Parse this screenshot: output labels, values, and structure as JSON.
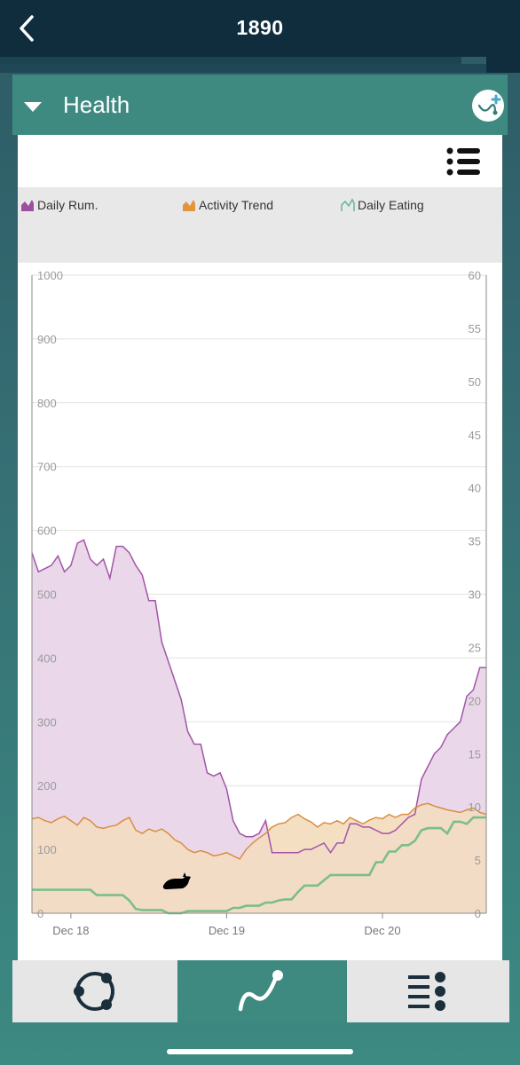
{
  "header": {
    "title": "1890",
    "back_icon": "chevron-left-icon"
  },
  "panel": {
    "title": "Health",
    "toggle_icon": "caret-down-icon",
    "add_icon": "add-trend-icon"
  },
  "chart_menu_icon": "list-icon",
  "legend": [
    {
      "label": "Daily Rum.",
      "color": "#9c4f9c",
      "icon": "area-series-icon"
    },
    {
      "label": "Activity Trend",
      "color": "#e0963c",
      "icon": "area-series-icon"
    },
    {
      "label": "Daily Eating",
      "color": "#6fb7a3",
      "icon": "line-series-icon"
    }
  ],
  "colors": {
    "rumination_fill": "#ead8ea",
    "rumination_line": "#a255a6",
    "activity_fill": "#f3dcc2",
    "activity_line": "#d98e43",
    "eating_line": "#7bbf86",
    "overlap_fill": "#fdf5cf",
    "accent": "#3f8a80",
    "topbar": "#0f2d3d"
  },
  "chart_data": {
    "type": "area",
    "x_tick_labels": [
      "Dec 18",
      "Dec 19",
      "Dec 20"
    ],
    "x_tick_positions": [
      6,
      30,
      54
    ],
    "x_range": [
      0,
      70
    ],
    "y_left": {
      "range": [
        0,
        1000
      ],
      "ticks": [
        0,
        100,
        200,
        300,
        400,
        500,
        600,
        700,
        800,
        900,
        1000
      ]
    },
    "y_right": {
      "range": [
        0,
        60
      ],
      "ticks": [
        0,
        5,
        10,
        15,
        20,
        25,
        30,
        35,
        40,
        45,
        50,
        55,
        60
      ]
    },
    "grid": true,
    "annotation_icon": "lying-cow-icon",
    "series": [
      {
        "name": "Daily Rum.",
        "axis": "left",
        "style": "area",
        "x": [
          0,
          1,
          2,
          3,
          4,
          5,
          6,
          7,
          8,
          9,
          10,
          11,
          12,
          13,
          14,
          15,
          16,
          17,
          18,
          19,
          20,
          21,
          22,
          23,
          24,
          25,
          26,
          27,
          28,
          29,
          30,
          31,
          32,
          33,
          34,
          35,
          36,
          37,
          38,
          39,
          40,
          41,
          42,
          43,
          44,
          45,
          46,
          47,
          48,
          49,
          50,
          51,
          52,
          53,
          54,
          55,
          56,
          57,
          58,
          59,
          60,
          61,
          62,
          63,
          64,
          65,
          66,
          67,
          68,
          69,
          70
        ],
        "values": [
          565,
          535,
          540,
          545,
          560,
          535,
          545,
          580,
          585,
          555,
          545,
          555,
          525,
          575,
          575,
          565,
          545,
          530,
          490,
          490,
          425,
          395,
          365,
          335,
          285,
          265,
          265,
          220,
          215,
          220,
          195,
          145,
          125,
          120,
          120,
          125,
          145,
          95,
          95,
          95,
          95,
          95,
          100,
          100,
          105,
          110,
          95,
          110,
          110,
          140,
          140,
          135,
          135,
          130,
          125,
          125,
          130,
          140,
          150,
          155,
          210,
          230,
          250,
          260,
          280,
          290,
          300,
          340,
          350,
          385,
          385
        ]
      },
      {
        "name": "Activity Trend",
        "axis": "left",
        "style": "area",
        "x": [
          0,
          1,
          2,
          3,
          4,
          5,
          6,
          7,
          8,
          9,
          10,
          11,
          12,
          13,
          14,
          15,
          16,
          17,
          18,
          19,
          20,
          21,
          22,
          23,
          24,
          25,
          26,
          27,
          28,
          29,
          30,
          31,
          32,
          33,
          34,
          35,
          36,
          37,
          38,
          39,
          40,
          41,
          42,
          43,
          44,
          45,
          46,
          47,
          48,
          49,
          50,
          51,
          52,
          53,
          54,
          55,
          56,
          57,
          58,
          59,
          60,
          61,
          62,
          63,
          64,
          65,
          66,
          67,
          68,
          69,
          70
        ],
        "values": [
          148,
          150,
          145,
          142,
          148,
          152,
          145,
          138,
          150,
          145,
          135,
          133,
          136,
          138,
          145,
          150,
          130,
          125,
          132,
          128,
          132,
          125,
          115,
          110,
          100,
          95,
          98,
          95,
          90,
          92,
          95,
          90,
          85,
          100,
          110,
          118,
          125,
          135,
          140,
          142,
          150,
          155,
          148,
          143,
          135,
          142,
          140,
          145,
          140,
          150,
          145,
          140,
          146,
          150,
          148,
          155,
          150,
          155,
          155,
          165,
          170,
          172,
          168,
          165,
          162,
          160,
          158,
          162,
          165,
          158,
          155
        ]
      },
      {
        "name": "Daily Eating",
        "axis": "right",
        "style": "line",
        "x": [
          0,
          1,
          2,
          3,
          4,
          5,
          6,
          7,
          8,
          9,
          10,
          11,
          12,
          13,
          14,
          15,
          16,
          17,
          18,
          19,
          20,
          21,
          22,
          23,
          24,
          25,
          26,
          27,
          28,
          29,
          30,
          31,
          32,
          33,
          34,
          35,
          36,
          37,
          38,
          39,
          40,
          41,
          42,
          43,
          44,
          45,
          46,
          47,
          48,
          49,
          50,
          51,
          52,
          53,
          54,
          55,
          56,
          57,
          58,
          59,
          60,
          61,
          62,
          63,
          64,
          65,
          66,
          67,
          68,
          69,
          70
        ],
        "values": [
          2.2,
          2.2,
          2.2,
          2.2,
          2.2,
          2.2,
          2.2,
          2.2,
          2.2,
          2.2,
          1.7,
          1.7,
          1.7,
          1.7,
          1.7,
          1.2,
          0.4,
          0.3,
          0.3,
          0.3,
          0.3,
          0,
          0,
          0,
          0.2,
          0.2,
          0.2,
          0.2,
          0.2,
          0.2,
          0.2,
          0.5,
          0.5,
          0.7,
          0.7,
          0.7,
          1.0,
          1.0,
          1.2,
          1.3,
          1.3,
          2.0,
          2.6,
          2.6,
          2.6,
          3.1,
          3.6,
          3.6,
          3.6,
          3.6,
          3.6,
          3.6,
          3.6,
          4.8,
          4.8,
          5.8,
          5.8,
          6.4,
          6.4,
          6.8,
          7.8,
          8.0,
          8.0,
          8.0,
          7.5,
          8.6,
          8.6,
          8.4,
          9.0,
          9.0,
          9.0
        ]
      }
    ]
  }
}
